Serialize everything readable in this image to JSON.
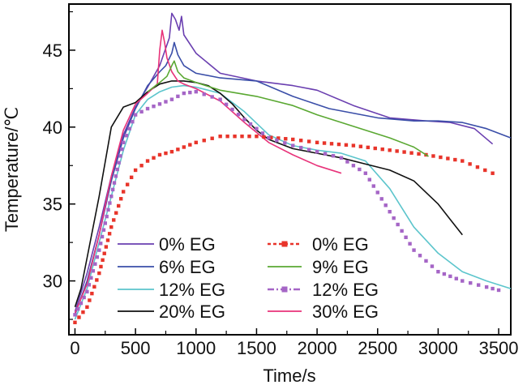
{
  "chart_data": {
    "type": "line",
    "title": "",
    "xlabel": "Time/s",
    "ylabel": "Temperature/℃",
    "xlim": [
      -50,
      3600
    ],
    "ylim": [
      26.5,
      48
    ],
    "xticks": [
      0,
      500,
      1000,
      1500,
      2000,
      2500,
      3000,
      3500
    ],
    "yticks": [
      30,
      35,
      40,
      45
    ],
    "grid": false,
    "legend_position": "bottom-center, two columns",
    "series": [
      {
        "name": "0% EG",
        "color": "#6a3fb0",
        "style": "solid",
        "x": [
          0,
          100,
          200,
          300,
          400,
          500,
          600,
          700,
          780,
          800,
          830,
          860,
          880,
          900,
          1000,
          1200,
          1500,
          1800,
          2000,
          2300,
          2600,
          2900,
          3100,
          3300,
          3450
        ],
        "y": [
          28.0,
          30.5,
          33.5,
          36.8,
          39.5,
          41.3,
          42.6,
          44.0,
          45.8,
          47.4,
          47.0,
          46.3,
          47.2,
          46.0,
          44.8,
          43.5,
          43.0,
          42.7,
          42.4,
          41.4,
          40.6,
          40.4,
          40.3,
          39.9,
          38.9
        ]
      },
      {
        "name": "6% EG",
        "color": "#3a4ea8",
        "style": "solid",
        "x": [
          0,
          100,
          200,
          300,
          400,
          500,
          600,
          700,
          750,
          800,
          820,
          850,
          900,
          1000,
          1200,
          1500,
          1800,
          2100,
          2500,
          2800,
          3000,
          3200,
          3400,
          3600
        ],
        "y": [
          27.8,
          30.0,
          33.0,
          36.5,
          39.3,
          41.2,
          42.7,
          43.6,
          44.0,
          44.8,
          45.5,
          44.7,
          44.0,
          43.5,
          43.2,
          43.0,
          42.0,
          41.2,
          40.6,
          40.4,
          40.4,
          40.3,
          39.9,
          39.3
        ]
      },
      {
        "name": "12% EG",
        "color": "#5cc5cc",
        "style": "solid",
        "x": [
          0,
          100,
          200,
          300,
          400,
          500,
          600,
          700,
          800,
          900,
          1000,
          1200,
          1400,
          1600,
          1800,
          2000,
          2200,
          2400,
          2600,
          2800,
          3000,
          3200,
          3400,
          3600
        ],
        "y": [
          27.5,
          29.5,
          32.5,
          35.5,
          38.5,
          40.8,
          41.8,
          42.3,
          42.6,
          42.7,
          42.6,
          42.2,
          41.0,
          39.5,
          38.8,
          38.5,
          38.3,
          37.8,
          36.0,
          33.5,
          31.8,
          30.6,
          30.0,
          29.5
        ]
      },
      {
        "name": "20% EG",
        "color": "#111111",
        "style": "solid",
        "x": [
          0,
          50,
          100,
          200,
          300,
          400,
          500,
          600,
          700,
          800,
          900,
          1000,
          1100,
          1200,
          1300,
          1400,
          1500,
          1600,
          1800,
          2000,
          2200,
          2400,
          2600,
          2800,
          3000,
          3100,
          3200
        ],
        "y": [
          28.3,
          29.5,
          31.5,
          35.5,
          40.0,
          41.3,
          41.6,
          42.3,
          42.8,
          43.0,
          43.0,
          42.9,
          42.7,
          42.2,
          41.5,
          40.6,
          39.8,
          39.2,
          38.6,
          38.3,
          38.0,
          37.6,
          37.2,
          36.5,
          35.0,
          34.0,
          33.0
        ]
      },
      {
        "name": "30% EG",
        "color": "#e8337a",
        "style": "solid",
        "x": [
          0,
          100,
          200,
          300,
          400,
          500,
          600,
          680,
          700,
          720,
          740,
          760,
          800,
          850,
          900,
          1000,
          1200,
          1400,
          1600,
          1800,
          2000,
          2200
        ],
        "y": [
          27.9,
          29.8,
          33.0,
          36.8,
          39.8,
          41.5,
          42.2,
          42.8,
          45.0,
          46.3,
          45.5,
          44.5,
          43.6,
          43.0,
          42.8,
          42.5,
          41.7,
          40.3,
          39.0,
          38.2,
          37.5,
          37.0
        ]
      },
      {
        "name": "0% EG",
        "color": "#e8342a",
        "style": "dashed-square",
        "x": [
          0,
          100,
          200,
          300,
          400,
          500,
          600,
          700,
          800,
          1000,
          1200,
          1500,
          1800,
          2000,
          2300,
          2600,
          2900,
          3200,
          3450
        ],
        "y": [
          27.3,
          28.3,
          30.5,
          33.5,
          35.8,
          37.2,
          37.8,
          38.2,
          38.4,
          39.0,
          39.4,
          39.4,
          39.2,
          39.0,
          38.8,
          38.5,
          38.2,
          37.8,
          37.0
        ]
      },
      {
        "name": "9% EG",
        "color": "#5aa832",
        "style": "solid",
        "x": [
          600,
          700,
          760,
          800,
          820,
          850,
          900,
          1000,
          1200,
          1500,
          1800,
          2000,
          2200,
          2400,
          2600,
          2800,
          2920
        ],
        "y": [
          42.3,
          42.9,
          43.3,
          44.0,
          44.3,
          43.6,
          43.2,
          42.9,
          42.4,
          42.0,
          41.4,
          40.8,
          40.3,
          39.8,
          39.3,
          38.7,
          38.1
        ]
      },
      {
        "name": "12% EG",
        "color": "#a565c6",
        "style": "dash-dot-square",
        "x": [
          0,
          100,
          200,
          300,
          400,
          500,
          600,
          700,
          800,
          900,
          1000,
          1200,
          1400,
          1600,
          1800,
          2000,
          2200,
          2400,
          2600,
          2800,
          3000,
          3200,
          3400,
          3500
        ],
        "y": [
          27.8,
          29.3,
          32.0,
          35.5,
          39.0,
          40.8,
          41.2,
          41.5,
          41.8,
          42.2,
          42.3,
          41.8,
          40.5,
          39.3,
          38.8,
          38.4,
          38.0,
          37.0,
          34.5,
          32.0,
          30.6,
          30.0,
          29.6,
          29.4
        ]
      }
    ],
    "legend": [
      {
        "label": "0% EG",
        "color": "#6a3fb0",
        "style": "solid"
      },
      {
        "label": "0% EG",
        "color": "#e8342a",
        "style": "dashed-square"
      },
      {
        "label": "6% EG",
        "color": "#3a4ea8",
        "style": "solid"
      },
      {
        "label": "9% EG",
        "color": "#5aa832",
        "style": "solid"
      },
      {
        "label": "12% EG",
        "color": "#5cc5cc",
        "style": "solid"
      },
      {
        "label": "12% EG",
        "color": "#a565c6",
        "style": "dash-dot-square"
      },
      {
        "label": "20% EG",
        "color": "#111111",
        "style": "solid"
      },
      {
        "label": "30% EG",
        "color": "#e8337a",
        "style": "solid"
      }
    ]
  }
}
